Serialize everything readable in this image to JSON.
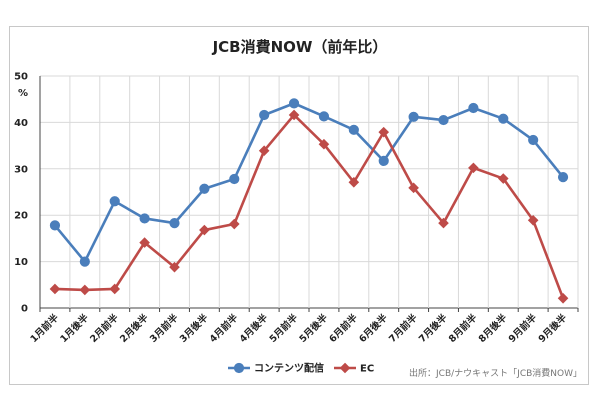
{
  "chart_data": {
    "type": "line",
    "title": "JCB消費NOW（前年比）",
    "ylabel_unit": "%",
    "ylim": [
      0,
      50
    ],
    "yticks": [
      0,
      10,
      20,
      30,
      40,
      50
    ],
    "grid": true,
    "legend_position": "bottom",
    "source": "出所：JCB/ナウキャスト「JCB消費NOW」",
    "categories": [
      "1月前半",
      "1月後半",
      "2月前半",
      "2月後半",
      "3月前半",
      "3月後半",
      "4月前半",
      "4月後半",
      "5月前半",
      "5月後半",
      "6月前半",
      "6月後半",
      "7月前半",
      "7月後半",
      "8月前半",
      "8月後半",
      "9月前半",
      "9月後半"
    ],
    "series": [
      {
        "name": "コンテンツ配信",
        "color": "#4a7ebb",
        "marker": "circle",
        "values": [
          17.8,
          10.0,
          23.0,
          19.3,
          18.3,
          25.7,
          27.8,
          41.6,
          44.1,
          41.3,
          38.4,
          31.7,
          41.2,
          40.5,
          43.1,
          40.8,
          36.2,
          28.2
        ]
      },
      {
        "name": "EC",
        "color": "#be4b48",
        "marker": "diamond",
        "values": [
          4.1,
          3.9,
          4.1,
          14.1,
          8.8,
          16.8,
          18.1,
          33.9,
          41.6,
          35.3,
          27.1,
          37.9,
          25.9,
          18.3,
          30.2,
          27.9,
          18.9,
          2.1
        ]
      }
    ]
  }
}
